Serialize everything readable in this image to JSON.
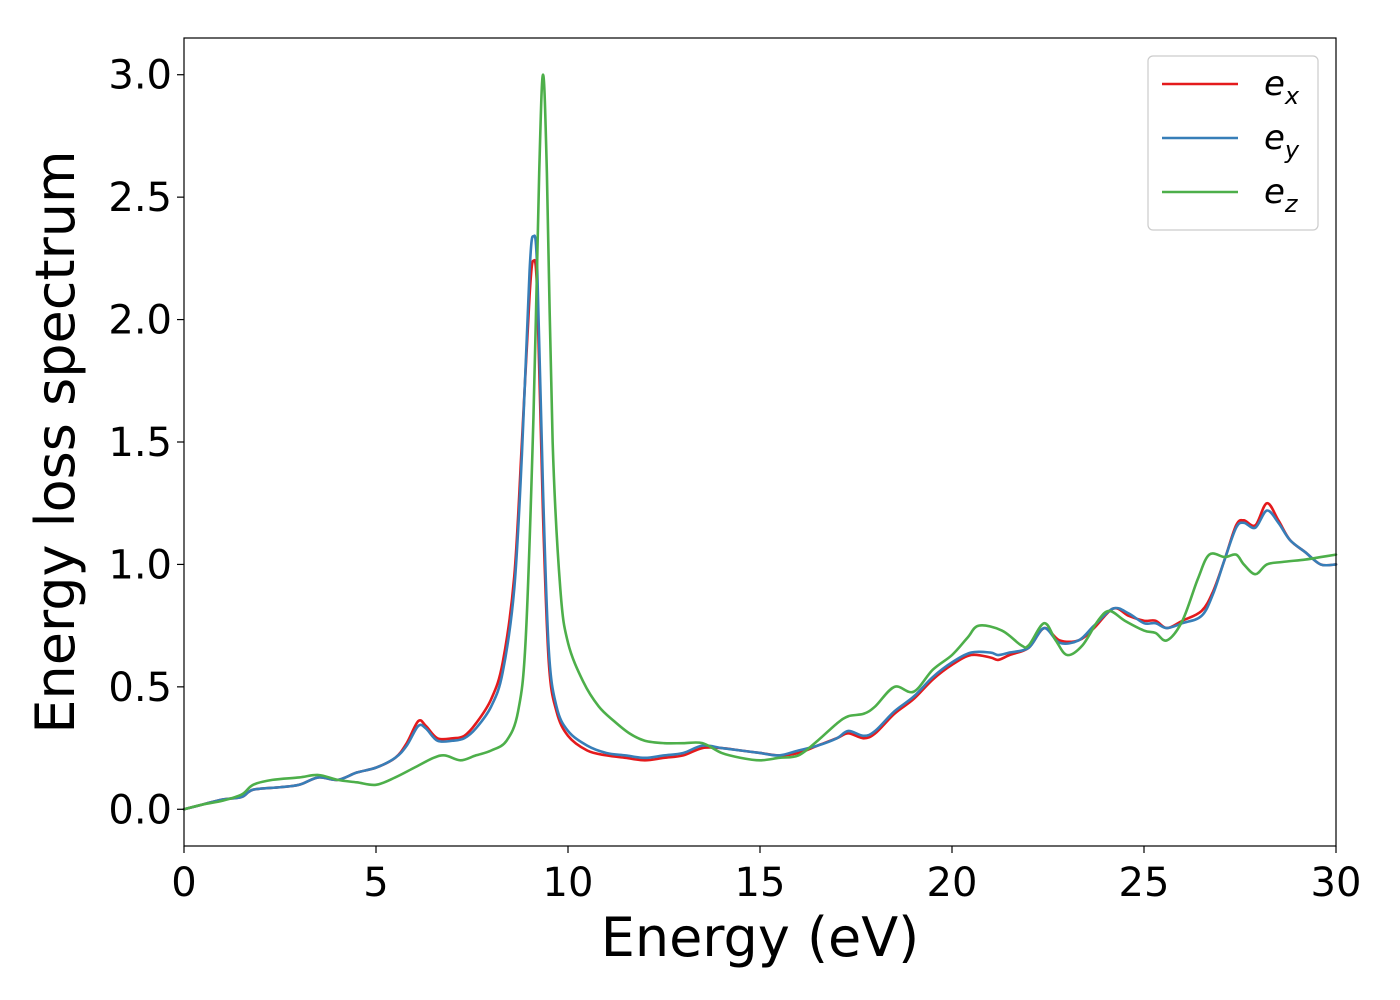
{
  "chart_data": {
    "type": "line",
    "title": "",
    "xlabel": "Energy (eV)",
    "ylabel": "Energy loss spectrum",
    "xlim": [
      0,
      30
    ],
    "ylim": [
      -0.15,
      3.15
    ],
    "xticks": [
      0,
      5,
      10,
      15,
      20,
      25,
      30
    ],
    "xtick_labels": [
      "0",
      "5",
      "10",
      "15",
      "20",
      "25",
      "30"
    ],
    "yticks": [
      0.0,
      0.5,
      1.0,
      1.5,
      2.0,
      2.5,
      3.0
    ],
    "ytick_labels": [
      "0.0",
      "0.5",
      "1.0",
      "1.5",
      "2.0",
      "2.5",
      "3.0"
    ],
    "grid": false,
    "legend_position": "top-right",
    "series": [
      {
        "name": "e",
        "subscript": "x",
        "color": "#e41a1c",
        "points": [
          [
            0,
            0
          ],
          [
            0.5,
            0.02
          ],
          [
            1,
            0.04
          ],
          [
            1.5,
            0.05
          ],
          [
            1.8,
            0.08
          ],
          [
            2.5,
            0.09
          ],
          [
            3,
            0.1
          ],
          [
            3.5,
            0.13
          ],
          [
            4,
            0.12
          ],
          [
            4.5,
            0.15
          ],
          [
            5,
            0.17
          ],
          [
            5.5,
            0.21
          ],
          [
            5.8,
            0.27
          ],
          [
            6.1,
            0.36
          ],
          [
            6.3,
            0.34
          ],
          [
            6.6,
            0.29
          ],
          [
            7,
            0.29
          ],
          [
            7.3,
            0.3
          ],
          [
            7.6,
            0.35
          ],
          [
            8,
            0.45
          ],
          [
            8.3,
            0.6
          ],
          [
            8.6,
            0.95
          ],
          [
            8.8,
            1.5
          ],
          [
            9.0,
            2.1
          ],
          [
            9.1,
            2.24
          ],
          [
            9.2,
            2.1
          ],
          [
            9.35,
            1.2
          ],
          [
            9.5,
            0.6
          ],
          [
            9.7,
            0.4
          ],
          [
            10,
            0.3
          ],
          [
            10.5,
            0.24
          ],
          [
            11,
            0.22
          ],
          [
            11.5,
            0.21
          ],
          [
            12,
            0.2
          ],
          [
            12.5,
            0.21
          ],
          [
            13,
            0.22
          ],
          [
            13.5,
            0.25
          ],
          [
            14,
            0.25
          ],
          [
            14.5,
            0.24
          ],
          [
            15,
            0.23
          ],
          [
            15.5,
            0.22
          ],
          [
            16,
            0.23
          ],
          [
            16.5,
            0.26
          ],
          [
            17,
            0.29
          ],
          [
            17.3,
            0.31
          ],
          [
            17.7,
            0.29
          ],
          [
            18,
            0.31
          ],
          [
            18.5,
            0.39
          ],
          [
            19,
            0.45
          ],
          [
            19.5,
            0.53
          ],
          [
            20,
            0.59
          ],
          [
            20.5,
            0.63
          ],
          [
            21,
            0.62
          ],
          [
            21.2,
            0.61
          ],
          [
            21.5,
            0.63
          ],
          [
            22,
            0.66
          ],
          [
            22.4,
            0.74
          ],
          [
            22.8,
            0.69
          ],
          [
            23.3,
            0.69
          ],
          [
            23.7,
            0.74
          ],
          [
            24.2,
            0.82
          ],
          [
            24.6,
            0.79
          ],
          [
            25,
            0.77
          ],
          [
            25.3,
            0.77
          ],
          [
            25.6,
            0.74
          ],
          [
            26,
            0.77
          ],
          [
            26.5,
            0.81
          ],
          [
            26.8,
            0.89
          ],
          [
            27.1,
            1.02
          ],
          [
            27.4,
            1.16
          ],
          [
            27.6,
            1.18
          ],
          [
            27.9,
            1.16
          ],
          [
            28.2,
            1.25
          ],
          [
            28.5,
            1.18
          ],
          [
            28.8,
            1.1
          ],
          [
            29.2,
            1.05
          ],
          [
            29.6,
            1.0
          ],
          [
            30,
            1.0
          ]
        ]
      },
      {
        "name": "e",
        "subscript": "y",
        "color": "#377eb8",
        "points": [
          [
            0,
            0
          ],
          [
            0.5,
            0.02
          ],
          [
            1,
            0.04
          ],
          [
            1.5,
            0.05
          ],
          [
            1.8,
            0.08
          ],
          [
            2.5,
            0.09
          ],
          [
            3,
            0.1
          ],
          [
            3.5,
            0.13
          ],
          [
            4,
            0.12
          ],
          [
            4.5,
            0.15
          ],
          [
            5,
            0.17
          ],
          [
            5.5,
            0.21
          ],
          [
            5.8,
            0.26
          ],
          [
            6.1,
            0.34
          ],
          [
            6.3,
            0.33
          ],
          [
            6.6,
            0.28
          ],
          [
            7,
            0.28
          ],
          [
            7.3,
            0.29
          ],
          [
            7.6,
            0.33
          ],
          [
            8,
            0.42
          ],
          [
            8.3,
            0.56
          ],
          [
            8.6,
            0.9
          ],
          [
            8.8,
            1.45
          ],
          [
            9.0,
            2.2
          ],
          [
            9.1,
            2.34
          ],
          [
            9.2,
            2.2
          ],
          [
            9.35,
            1.3
          ],
          [
            9.5,
            0.65
          ],
          [
            9.7,
            0.42
          ],
          [
            10,
            0.32
          ],
          [
            10.5,
            0.26
          ],
          [
            11,
            0.23
          ],
          [
            11.5,
            0.22
          ],
          [
            12,
            0.21
          ],
          [
            12.5,
            0.22
          ],
          [
            13,
            0.23
          ],
          [
            13.5,
            0.26
          ],
          [
            14,
            0.25
          ],
          [
            14.5,
            0.24
          ],
          [
            15,
            0.23
          ],
          [
            15.5,
            0.22
          ],
          [
            16,
            0.24
          ],
          [
            16.5,
            0.26
          ],
          [
            17,
            0.29
          ],
          [
            17.3,
            0.32
          ],
          [
            17.7,
            0.3
          ],
          [
            18,
            0.32
          ],
          [
            18.5,
            0.4
          ],
          [
            19,
            0.46
          ],
          [
            19.5,
            0.54
          ],
          [
            20,
            0.6
          ],
          [
            20.5,
            0.64
          ],
          [
            21,
            0.64
          ],
          [
            21.2,
            0.63
          ],
          [
            21.5,
            0.64
          ],
          [
            22,
            0.66
          ],
          [
            22.4,
            0.74
          ],
          [
            22.8,
            0.68
          ],
          [
            23.3,
            0.69
          ],
          [
            23.7,
            0.75
          ],
          [
            24.2,
            0.82
          ],
          [
            24.6,
            0.8
          ],
          [
            25,
            0.76
          ],
          [
            25.3,
            0.76
          ],
          [
            25.6,
            0.74
          ],
          [
            26,
            0.76
          ],
          [
            26.5,
            0.79
          ],
          [
            26.8,
            0.88
          ],
          [
            27.1,
            1.02
          ],
          [
            27.4,
            1.15
          ],
          [
            27.6,
            1.17
          ],
          [
            27.9,
            1.15
          ],
          [
            28.2,
            1.22
          ],
          [
            28.5,
            1.17
          ],
          [
            28.8,
            1.1
          ],
          [
            29.2,
            1.05
          ],
          [
            29.6,
            1.0
          ],
          [
            30,
            1.0
          ]
        ]
      },
      {
        "name": "e",
        "subscript": "z",
        "color": "#4daf4a",
        "points": [
          [
            0,
            0
          ],
          [
            0.5,
            0.02
          ],
          [
            1,
            0.035
          ],
          [
            1.5,
            0.06
          ],
          [
            1.8,
            0.1
          ],
          [
            2.3,
            0.12
          ],
          [
            3,
            0.13
          ],
          [
            3.5,
            0.14
          ],
          [
            4,
            0.12
          ],
          [
            4.5,
            0.11
          ],
          [
            5,
            0.1
          ],
          [
            5.5,
            0.13
          ],
          [
            6,
            0.17
          ],
          [
            6.5,
            0.21
          ],
          [
            6.8,
            0.22
          ],
          [
            7.2,
            0.2
          ],
          [
            7.6,
            0.22
          ],
          [
            8,
            0.24
          ],
          [
            8.4,
            0.28
          ],
          [
            8.7,
            0.4
          ],
          [
            8.9,
            0.7
          ],
          [
            9.1,
            1.6
          ],
          [
            9.25,
            2.6
          ],
          [
            9.35,
            3.0
          ],
          [
            9.45,
            2.6
          ],
          [
            9.6,
            1.5
          ],
          [
            9.8,
            0.9
          ],
          [
            10,
            0.68
          ],
          [
            10.4,
            0.52
          ],
          [
            10.8,
            0.42
          ],
          [
            11.2,
            0.36
          ],
          [
            11.6,
            0.31
          ],
          [
            12,
            0.28
          ],
          [
            12.5,
            0.27
          ],
          [
            13,
            0.27
          ],
          [
            13.5,
            0.27
          ],
          [
            14,
            0.23
          ],
          [
            14.5,
            0.21
          ],
          [
            15,
            0.2
          ],
          [
            15.5,
            0.21
          ],
          [
            16,
            0.22
          ],
          [
            16.5,
            0.28
          ],
          [
            17,
            0.35
          ],
          [
            17.3,
            0.38
          ],
          [
            17.7,
            0.39
          ],
          [
            18,
            0.42
          ],
          [
            18.5,
            0.5
          ],
          [
            19,
            0.48
          ],
          [
            19.5,
            0.57
          ],
          [
            20,
            0.63
          ],
          [
            20.4,
            0.7
          ],
          [
            20.7,
            0.75
          ],
          [
            21.3,
            0.73
          ],
          [
            21.8,
            0.67
          ],
          [
            22,
            0.67
          ],
          [
            22.4,
            0.76
          ],
          [
            22.7,
            0.69
          ],
          [
            23,
            0.63
          ],
          [
            23.4,
            0.67
          ],
          [
            23.8,
            0.77
          ],
          [
            24.1,
            0.81
          ],
          [
            24.5,
            0.77
          ],
          [
            25,
            0.73
          ],
          [
            25.3,
            0.72
          ],
          [
            25.6,
            0.69
          ],
          [
            26,
            0.77
          ],
          [
            26.4,
            0.94
          ],
          [
            26.7,
            1.04
          ],
          [
            27.1,
            1.03
          ],
          [
            27.4,
            1.04
          ],
          [
            27.6,
            1.0
          ],
          [
            27.9,
            0.96
          ],
          [
            28.2,
            1.0
          ],
          [
            28.6,
            1.01
          ],
          [
            29.2,
            1.02
          ],
          [
            29.6,
            1.03
          ],
          [
            30,
            1.04
          ]
        ]
      }
    ]
  }
}
